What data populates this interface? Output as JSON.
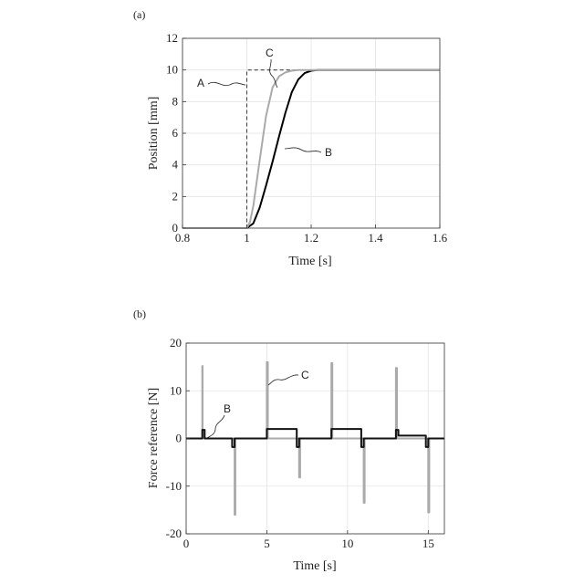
{
  "chart_data": [
    {
      "type": "line",
      "panel_label": "(a)",
      "xlabel": "Time [s]",
      "ylabel": "Position [mm]",
      "xlim": [
        0.8,
        1.6
      ],
      "ylim": [
        0,
        12
      ],
      "xticks": [
        0.8,
        1,
        1.2,
        1.4,
        1.6
      ],
      "xtick_labels": [
        "0.8",
        "1",
        "1.2",
        "1.4",
        "1.6"
      ],
      "yticks": [
        0,
        2,
        4,
        6,
        8,
        10,
        12
      ],
      "ytick_labels": [
        "0",
        "2",
        "4",
        "6",
        "8",
        "10",
        "12"
      ],
      "grid": true,
      "series": [
        {
          "name": "A",
          "color": "#444444",
          "dashed": true,
          "x": [
            0.8,
            1.0,
            1.0,
            1.6
          ],
          "y": [
            0,
            0,
            10,
            10
          ]
        },
        {
          "name": "B",
          "color": "#000000",
          "dashed": false,
          "x": [
            0.8,
            1.0,
            1.02,
            1.04,
            1.06,
            1.08,
            1.1,
            1.12,
            1.14,
            1.16,
            1.18,
            1.2,
            1.22,
            1.24,
            1.26,
            1.3,
            1.6
          ],
          "y": [
            0,
            0,
            0.3,
            1.3,
            2.7,
            4.2,
            5.8,
            7.3,
            8.6,
            9.4,
            9.8,
            9.95,
            10.0,
            10.0,
            10.0,
            10.0,
            10.0
          ]
        },
        {
          "name": "C",
          "color": "#aaaaaa",
          "dashed": false,
          "x": [
            0.8,
            1.0,
            1.01,
            1.02,
            1.04,
            1.06,
            1.08,
            1.1,
            1.12,
            1.14,
            1.16,
            1.18,
            1.2,
            1.6
          ],
          "y": [
            0,
            0,
            0.4,
            1.4,
            4.3,
            7.1,
            8.9,
            9.6,
            9.85,
            9.95,
            10.0,
            10.0,
            10.0,
            10.0
          ]
        }
      ],
      "annotations": [
        "A",
        "B",
        "C"
      ]
    },
    {
      "type": "line",
      "panel_label": "(b)",
      "xlabel": "Time [s]",
      "ylabel": "Force reference [N]",
      "xlim": [
        0,
        16
      ],
      "ylim": [
        -20,
        20
      ],
      "xticks": [
        0,
        5,
        10,
        15
      ],
      "xtick_labels": [
        "0",
        "5",
        "10",
        "15"
      ],
      "yticks": [
        -20,
        -10,
        0,
        10,
        20
      ],
      "ytick_labels": [
        "-20",
        "-10",
        "0",
        "10",
        "20"
      ],
      "grid": true,
      "series": [
        {
          "name": "C",
          "color": "#aaaaaa",
          "x": [
            0,
            1.0,
            1.0,
            1.02,
            1.02,
            1.06,
            1.06,
            1.15,
            2.9,
            3.0,
            3.0,
            3.05,
            3.05,
            3.15,
            4.9,
            5.0,
            5.0,
            5.06,
            5.06,
            5.15,
            6.9,
            7.0,
            7.0,
            7.06,
            7.06,
            7.15,
            8.9,
            9.0,
            9.0,
            9.06,
            9.06,
            9.15,
            10.9,
            11.0,
            11.0,
            11.06,
            11.06,
            11.15,
            12.9,
            13.0,
            13.0,
            13.06,
            13.06,
            13.15,
            14.9,
            15.0,
            15.0,
            15.06,
            15.06,
            15.15,
            16
          ],
          "y": [
            0,
            0,
            15.2,
            15.2,
            0,
            0,
            1.5,
            0,
            0,
            0,
            -16,
            -16,
            0,
            0,
            0,
            0,
            16,
            16,
            0,
            0,
            0,
            0,
            -8.2,
            -8.2,
            0,
            0,
            0,
            0,
            15.8,
            15.8,
            0,
            0,
            0,
            0,
            -13.5,
            -13.5,
            0,
            0,
            0,
            0,
            14.8,
            14.8,
            0,
            0,
            0,
            0,
            -15.5,
            -15.5,
            0,
            0,
            0
          ]
        },
        {
          "name": "B",
          "color": "#111111",
          "x": [
            0,
            1.0,
            1.0,
            1.15,
            1.15,
            1.3,
            2.85,
            2.85,
            3.0,
            3.0,
            3.15,
            3.15,
            4.85,
            5.0,
            5.0,
            6.85,
            6.85,
            7.0,
            7.0,
            7.15,
            7.15,
            8.85,
            9.0,
            9.0,
            10.85,
            10.85,
            11.0,
            11.0,
            11.15,
            11.15,
            12.85,
            13.0,
            13.0,
            13.15,
            13.15,
            14.85,
            14.85,
            15.0,
            15.0,
            15.15,
            15.15,
            16
          ],
          "y": [
            0,
            0,
            1.8,
            1.8,
            0,
            0,
            0,
            -1.8,
            -1.8,
            0,
            0,
            0,
            0,
            0,
            2.0,
            2.0,
            -1.8,
            -1.8,
            0,
            0,
            0,
            0,
            0,
            2.0,
            2.0,
            -1.8,
            -1.8,
            0,
            0,
            0,
            0,
            0,
            1.8,
            1.8,
            0.6,
            0.6,
            -1.8,
            -1.8,
            0,
            0,
            0,
            0
          ]
        }
      ],
      "annotations": [
        "B",
        "C"
      ]
    }
  ]
}
